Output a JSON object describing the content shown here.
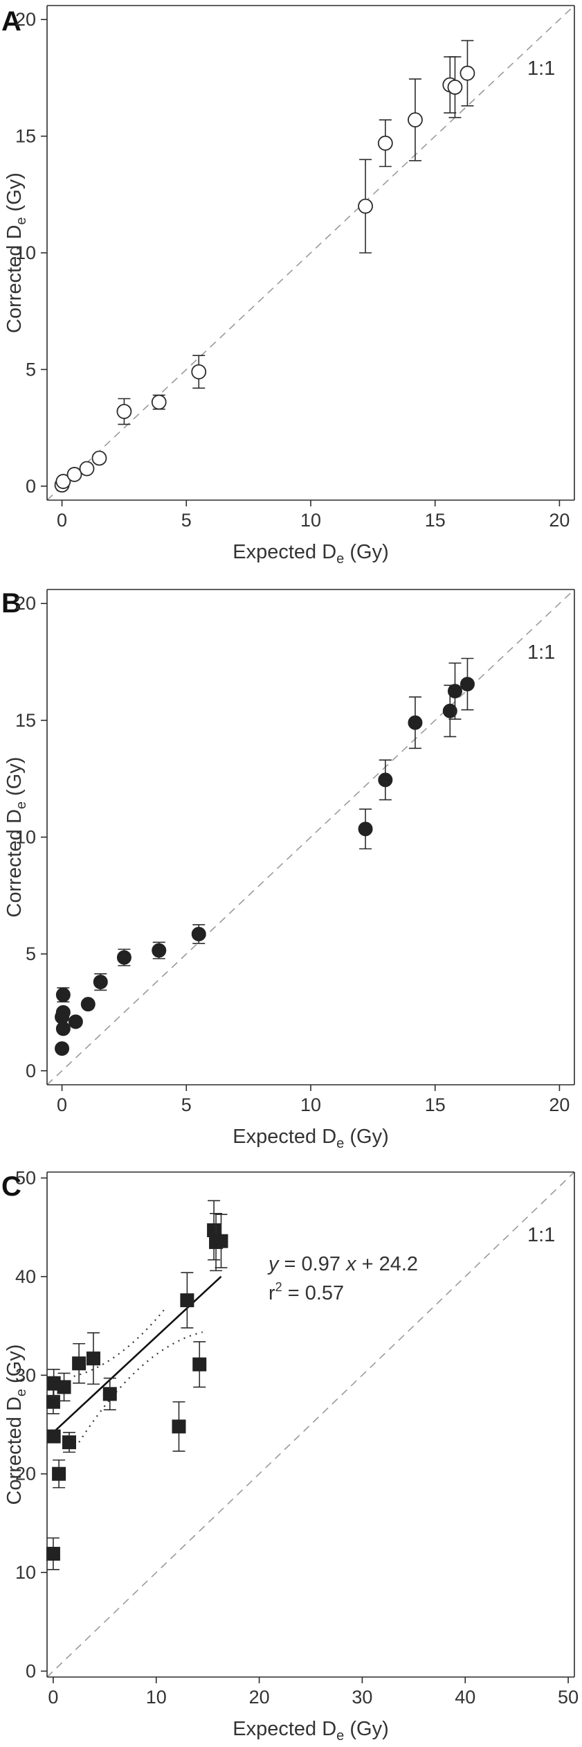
{
  "chart_data": [
    {
      "panel": "A",
      "type": "scatter",
      "xlabel": {
        "main": "Expected D",
        "sub": "e",
        "unit": " (Gy)"
      },
      "ylabel": {
        "main": "Corrected D",
        "sub": "e",
        "unit": " (Gy)"
      },
      "xlim": [
        -0.6,
        20.6
      ],
      "ylim": [
        -0.6,
        20.6
      ],
      "xticks": [
        0,
        5,
        10,
        15,
        20
      ],
      "yticks": [
        0,
        5,
        10,
        15,
        20
      ],
      "reference_line": "1:1",
      "reference_label": "1:1",
      "marker": "open-circle",
      "points": [
        {
          "x": 0.0,
          "y": 0.05,
          "err": 0.0
        },
        {
          "x": 0.05,
          "y": 0.2,
          "err": 0.0
        },
        {
          "x": 0.5,
          "y": 0.5,
          "err": 0.0
        },
        {
          "x": 1.0,
          "y": 0.75,
          "err": 0.0
        },
        {
          "x": 1.5,
          "y": 1.2,
          "err": 0.0
        },
        {
          "x": 2.5,
          "y": 3.2,
          "err": 0.55
        },
        {
          "x": 3.9,
          "y": 3.6,
          "err": 0.3
        },
        {
          "x": 5.5,
          "y": 4.9,
          "err": 0.7
        },
        {
          "x": 12.2,
          "y": 12.0,
          "err": 2.0
        },
        {
          "x": 13.0,
          "y": 14.7,
          "err": 1.0
        },
        {
          "x": 14.2,
          "y": 15.7,
          "err": 1.75
        },
        {
          "x": 15.6,
          "y": 17.2,
          "err": 1.2
        },
        {
          "x": 15.8,
          "y": 17.1,
          "err": 1.3
        },
        {
          "x": 16.3,
          "y": 17.7,
          "err": 1.4
        }
      ]
    },
    {
      "panel": "B",
      "type": "scatter",
      "xlabel": {
        "main": "Expected D",
        "sub": "e",
        "unit": " (Gy)"
      },
      "ylabel": {
        "main": "Corrected D",
        "sub": "e",
        "unit": " (Gy)"
      },
      "xlim": [
        -0.6,
        20.6
      ],
      "ylim": [
        -0.6,
        20.6
      ],
      "xticks": [
        0,
        5,
        10,
        15,
        20
      ],
      "yticks": [
        0,
        5,
        10,
        15,
        20
      ],
      "reference_line": "1:1",
      "reference_label": "1:1",
      "marker": "filled-circle",
      "points": [
        {
          "x": 0.0,
          "y": 0.95,
          "err": 0.0
        },
        {
          "x": 0.05,
          "y": 1.8,
          "err": 0.0
        },
        {
          "x": 0.0,
          "y": 2.3,
          "err": 0.0
        },
        {
          "x": 0.05,
          "y": 2.5,
          "err": 0.0
        },
        {
          "x": 0.05,
          "y": 3.25,
          "err": 0.3
        },
        {
          "x": 0.55,
          "y": 2.1,
          "err": 0.0
        },
        {
          "x": 1.05,
          "y": 2.85,
          "err": 0.0
        },
        {
          "x": 1.55,
          "y": 3.8,
          "err": 0.35
        },
        {
          "x": 2.5,
          "y": 4.85,
          "err": 0.35
        },
        {
          "x": 3.9,
          "y": 5.15,
          "err": 0.35
        },
        {
          "x": 5.5,
          "y": 5.85,
          "err": 0.4
        },
        {
          "x": 12.2,
          "y": 10.35,
          "err": 0.85
        },
        {
          "x": 13.0,
          "y": 12.45,
          "err": 0.85
        },
        {
          "x": 14.2,
          "y": 14.9,
          "err": 1.1
        },
        {
          "x": 15.6,
          "y": 15.4,
          "err": 1.1
        },
        {
          "x": 15.8,
          "y": 16.25,
          "err": 1.2
        },
        {
          "x": 16.3,
          "y": 16.55,
          "err": 1.1
        }
      ]
    },
    {
      "panel": "C",
      "type": "scatter",
      "xlabel": {
        "main": "Expected D",
        "sub": "e",
        "unit": " (Gy)"
      },
      "ylabel": {
        "main": "Corrected D",
        "sub": "e",
        "unit": " (Gy)"
      },
      "xlim": [
        -0.6,
        50.6
      ],
      "ylim": [
        -0.6,
        50.6
      ],
      "xticks": [
        0,
        10,
        20,
        30,
        40,
        50
      ],
      "yticks": [
        0,
        10,
        20,
        30,
        40,
        50
      ],
      "reference_line": "1:1",
      "reference_label": "1:1",
      "marker": "filled-square",
      "regression": {
        "slope": 0.97,
        "intercept": 24.2,
        "x_range": [
          0,
          16.3
        ]
      },
      "equation": {
        "lhs": "y",
        "mid": " = 0.97 ",
        "var": "x",
        "rhs": " + 24.2"
      },
      "r2": {
        "main": "r",
        "sup": "2",
        "rest": " = 0.57"
      },
      "points": [
        {
          "x": 0.0,
          "y": 11.9,
          "err": 1.6
        },
        {
          "x": 0.05,
          "y": 23.8,
          "err": 0.0
        },
        {
          "x": 0.0,
          "y": 27.3,
          "err": 1.2
        },
        {
          "x": 0.05,
          "y": 29.2,
          "err": 1.4
        },
        {
          "x": 0.55,
          "y": 20.0,
          "err": 1.4
        },
        {
          "x": 1.05,
          "y": 28.8,
          "err": 1.4
        },
        {
          "x": 1.55,
          "y": 23.2,
          "err": 1.0
        },
        {
          "x": 2.5,
          "y": 31.2,
          "err": 2.0
        },
        {
          "x": 3.9,
          "y": 31.7,
          "err": 2.6
        },
        {
          "x": 5.5,
          "y": 28.1,
          "err": 1.6
        },
        {
          "x": 12.2,
          "y": 24.8,
          "err": 2.5
        },
        {
          "x": 13.0,
          "y": 37.6,
          "err": 2.8
        },
        {
          "x": 14.2,
          "y": 31.1,
          "err": 2.3
        },
        {
          "x": 15.6,
          "y": 44.7,
          "err": 3.0
        },
        {
          "x": 15.8,
          "y": 43.5,
          "err": 2.9
        },
        {
          "x": 16.3,
          "y": 43.6,
          "err": 2.7
        }
      ]
    }
  ]
}
